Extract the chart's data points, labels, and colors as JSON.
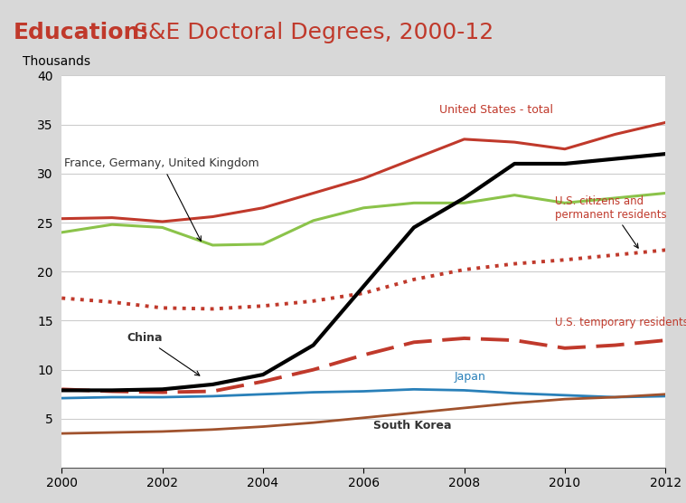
{
  "title_bold": "Education:",
  "title_normal": " S&E Doctoral Degrees, 2000-12",
  "ylabel": "Thousands",
  "years": [
    2000,
    2001,
    2002,
    2003,
    2004,
    2005,
    2006,
    2007,
    2008,
    2009,
    2010,
    2011,
    2012
  ],
  "us_total": [
    25.4,
    25.5,
    25.1,
    25.6,
    26.5,
    28.0,
    29.5,
    31.5,
    33.5,
    33.2,
    32.5,
    34.0,
    35.2
  ],
  "us_citizens": [
    17.3,
    16.9,
    16.3,
    16.2,
    16.5,
    17.0,
    17.8,
    19.2,
    20.2,
    20.8,
    21.2,
    21.7,
    22.2
  ],
  "us_temp": [
    8.0,
    7.8,
    7.7,
    7.8,
    8.8,
    10.0,
    11.5,
    12.8,
    13.2,
    13.0,
    12.2,
    12.5,
    13.0
  ],
  "china": [
    7.9,
    7.9,
    8.0,
    8.5,
    9.5,
    12.5,
    18.5,
    24.5,
    27.5,
    31.0,
    31.0,
    31.5,
    32.0
  ],
  "france_germany_uk": [
    24.0,
    24.8,
    24.5,
    22.7,
    22.8,
    25.2,
    26.5,
    27.0,
    27.0,
    27.8,
    27.0,
    27.5,
    28.0
  ],
  "japan": [
    7.1,
    7.2,
    7.2,
    7.3,
    7.5,
    7.7,
    7.8,
    8.0,
    7.9,
    7.6,
    7.4,
    7.2,
    7.3
  ],
  "south_korea": [
    3.5,
    3.6,
    3.7,
    3.9,
    4.2,
    4.6,
    5.1,
    5.6,
    6.1,
    6.6,
    7.0,
    7.2,
    7.5
  ],
  "color_red": "#c0392b",
  "color_black": "#000000",
  "color_green": "#8bc34a",
  "color_blue": "#2980b9",
  "color_brown": "#a0522d",
  "title_bg": "#c0c0c0",
  "plot_bg": "#ffffff",
  "fig_bg": "#d8d8d8",
  "ylim": [
    0,
    40
  ],
  "xlim": [
    2000,
    2012
  ],
  "yticks": [
    0,
    5,
    10,
    15,
    20,
    25,
    30,
    35,
    40
  ],
  "xticks": [
    2000,
    2002,
    2004,
    2006,
    2008,
    2010,
    2012
  ]
}
